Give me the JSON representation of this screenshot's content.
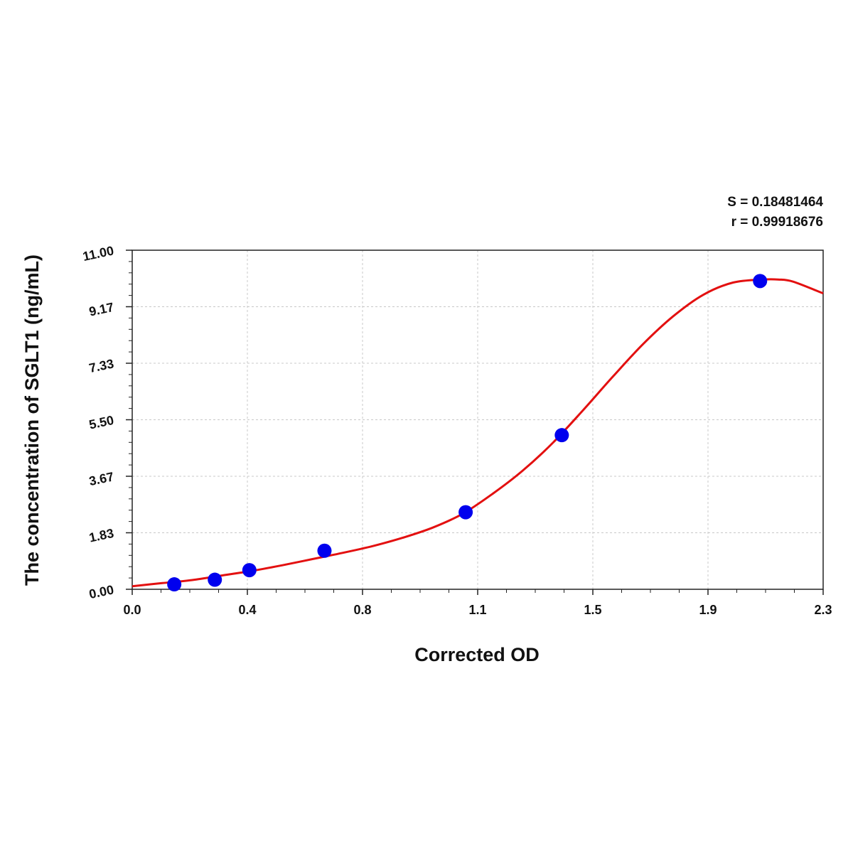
{
  "chart_data": {
    "type": "scatter",
    "title": "",
    "xlabel": "Corrected OD",
    "ylabel": "The concentration of SGLT1 (ng/mL)",
    "xlim": [
      0,
      2.3
    ],
    "ylim": [
      0,
      11
    ],
    "x_ticks": [
      "0.0",
      "0.4",
      "0.8",
      "1.1",
      "1.5",
      "1.9",
      "2.3"
    ],
    "y_ticks": [
      "0.00",
      "1.83",
      "3.67",
      "5.50",
      "7.33",
      "9.17",
      "11.00"
    ],
    "grid": true,
    "stats": {
      "s": "S = 0.18481464",
      "r": "r = 0.99918676"
    },
    "colors": {
      "points": "#0000ee",
      "curve": "#e31010",
      "grid": "#c8c8c8",
      "axis": "#222222"
    },
    "series": [
      {
        "type": "scatter",
        "x": [
          0.14,
          0.275,
          0.39,
          0.64,
          1.11,
          1.43,
          2.09
        ],
        "y": [
          0.16,
          0.31,
          0.62,
          1.25,
          2.5,
          5.0,
          10.0
        ]
      },
      {
        "type": "line",
        "x": [
          0,
          0.1,
          0.2,
          0.3,
          0.4,
          0.5,
          0.6,
          0.7,
          0.8,
          0.9,
          1.0,
          1.1,
          1.2,
          1.3,
          1.4,
          1.5,
          1.6,
          1.7,
          1.8,
          1.9,
          2.0,
          2.1,
          2.15,
          2.2,
          2.3
        ],
        "y": [
          0.1,
          0.2,
          0.3,
          0.45,
          0.6,
          0.78,
          0.98,
          1.18,
          1.4,
          1.67,
          2.0,
          2.45,
          3.1,
          3.85,
          4.75,
          5.8,
          6.9,
          7.95,
          8.85,
          9.55,
          9.95,
          10.05,
          10.05,
          9.98,
          9.6
        ]
      }
    ]
  }
}
